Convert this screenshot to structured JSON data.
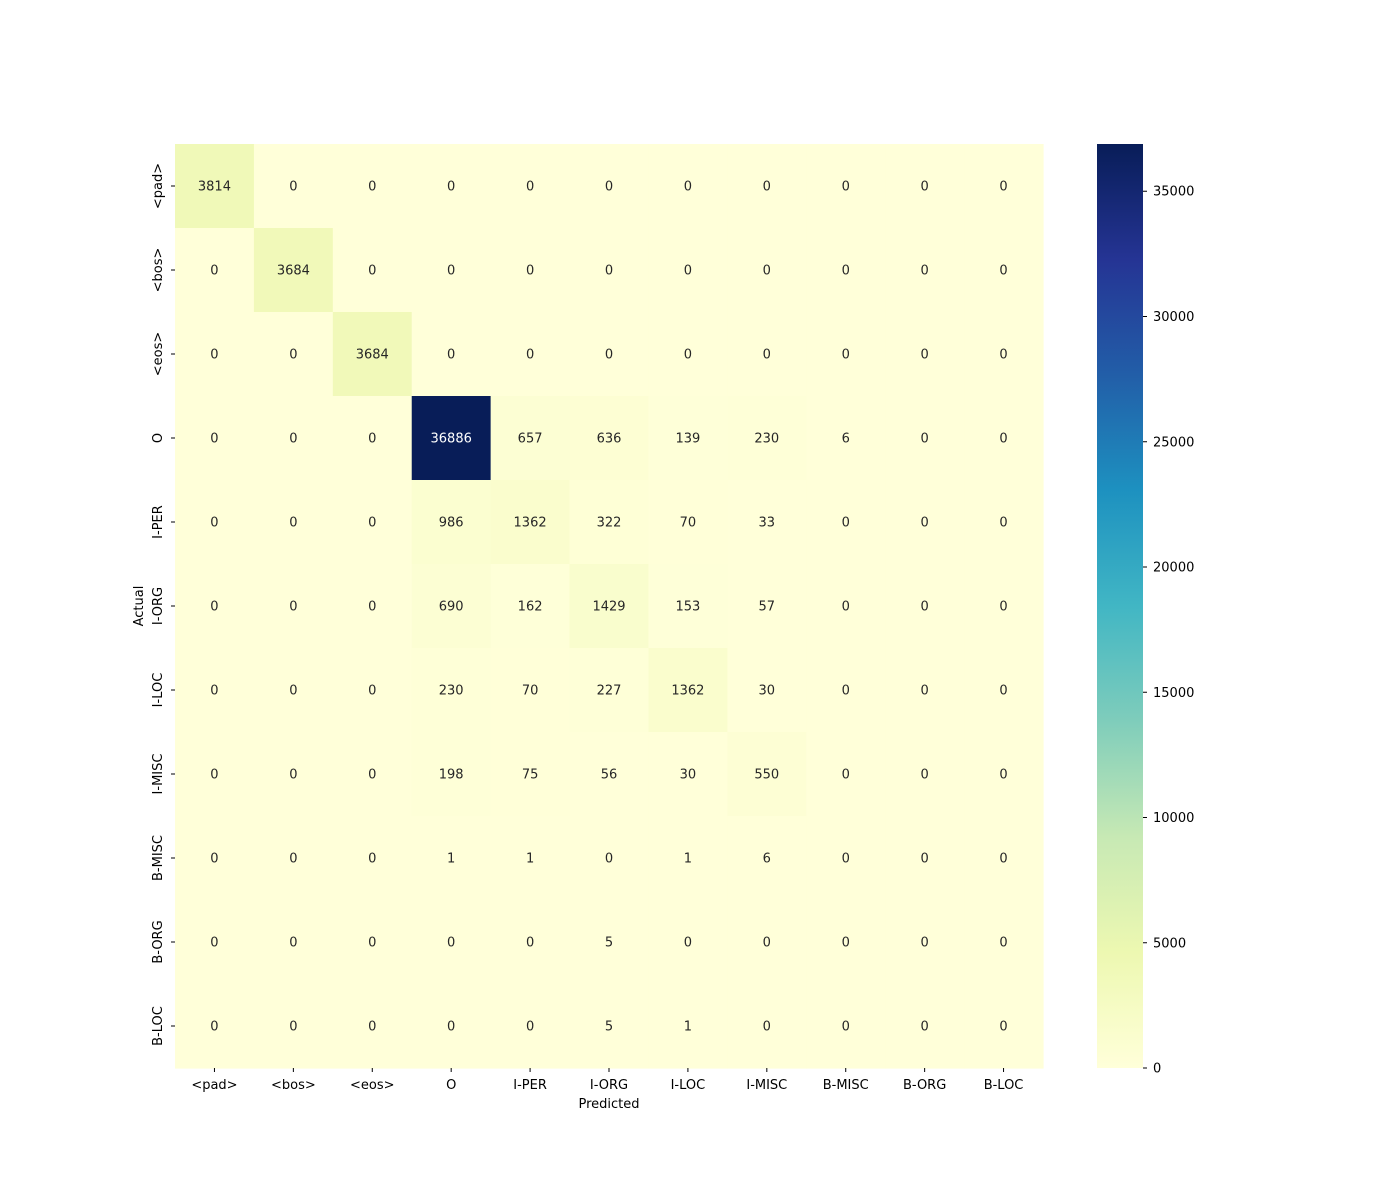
{
  "chart_data": {
    "type": "heatmap",
    "title": "",
    "xlabel": "Predicted",
    "ylabel": "Actual",
    "x_categories": [
      "<pad>",
      "<bos>",
      "<eos>",
      "O",
      "I-PER",
      "I-ORG",
      "I-LOC",
      "I-MISC",
      "B-MISC",
      "B-ORG",
      "B-LOC"
    ],
    "y_categories": [
      "<pad>",
      "<bos>",
      "<eos>",
      "O",
      "I-PER",
      "I-ORG",
      "I-LOC",
      "I-MISC",
      "B-MISC",
      "B-ORG",
      "B-LOC"
    ],
    "values": [
      [
        3814,
        0,
        0,
        0,
        0,
        0,
        0,
        0,
        0,
        0,
        0
      ],
      [
        0,
        3684,
        0,
        0,
        0,
        0,
        0,
        0,
        0,
        0,
        0
      ],
      [
        0,
        0,
        3684,
        0,
        0,
        0,
        0,
        0,
        0,
        0,
        0
      ],
      [
        0,
        0,
        0,
        36886,
        657,
        636,
        139,
        230,
        6,
        0,
        0
      ],
      [
        0,
        0,
        0,
        986,
        1362,
        322,
        70,
        33,
        0,
        0,
        0
      ],
      [
        0,
        0,
        0,
        690,
        162,
        1429,
        153,
        57,
        0,
        0,
        0
      ],
      [
        0,
        0,
        0,
        230,
        70,
        227,
        1362,
        30,
        0,
        0,
        0
      ],
      [
        0,
        0,
        0,
        198,
        75,
        56,
        30,
        550,
        0,
        0,
        0
      ],
      [
        0,
        0,
        0,
        1,
        1,
        0,
        1,
        6,
        0,
        0,
        0
      ],
      [
        0,
        0,
        0,
        0,
        0,
        5,
        0,
        0,
        0,
        0,
        0
      ],
      [
        0,
        0,
        0,
        0,
        0,
        5,
        1,
        0,
        0,
        0,
        0
      ]
    ],
    "colormap": "YlGnBu",
    "value_range": [
      0,
      36886
    ],
    "colorbar_ticks": [
      0,
      5000,
      10000,
      15000,
      20000,
      25000,
      30000,
      35000
    ],
    "colorbar_stops": [
      "#ffffd9",
      "#edf8b1",
      "#c7e9b4",
      "#7fcdbb",
      "#41b6c4",
      "#1d91c0",
      "#225ea8",
      "#253494",
      "#081d58"
    ]
  }
}
